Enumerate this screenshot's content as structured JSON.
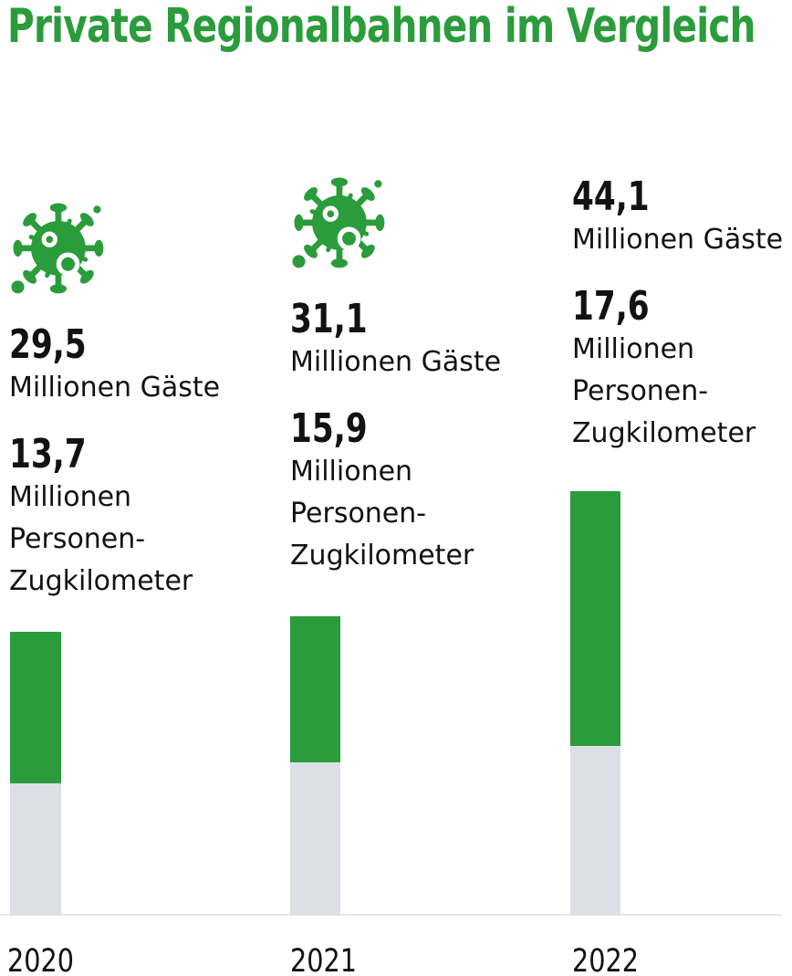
{
  "title": "Private Regionalbahnen im Vergleich",
  "colors": {
    "green": "#2B9C3B",
    "gray_bar": "#DCDFE6",
    "baseline": "#E5E7EB",
    "text": "#121212",
    "background": "#FFFFFF"
  },
  "columns": [
    {
      "year": "2020",
      "has_covid_icon": true,
      "guests_value": "29,5",
      "guests_label": "Millionen Gäste",
      "zugkm_value": "13,7",
      "zugkm_label_lines": [
        "Millionen",
        "Personen-",
        "Zugkilometer"
      ]
    },
    {
      "year": "2021",
      "has_covid_icon": true,
      "guests_value": "31,1",
      "guests_label": "Millionen Gäste",
      "zugkm_value": "15,9",
      "zugkm_label_lines": [
        "Millionen",
        "Personen-",
        "Zugkilometer"
      ]
    },
    {
      "year": "2022",
      "has_covid_icon": false,
      "guests_value": "44,1",
      "guests_label": "Millionen Gäste",
      "zugkm_value": "17,6",
      "zugkm_label_lines": [
        "Millionen",
        "Personen-",
        "Zugkilometer"
      ]
    }
  ],
  "chart_data": {
    "type": "bar",
    "title": "Private Regionalbahnen im Vergleich",
    "categories": [
      "2020",
      "2021",
      "2022"
    ],
    "series": [
      {
        "name": "Millionen Gäste",
        "values": [
          29.5,
          31.1,
          44.1
        ],
        "color": "#2B9C3B",
        "represents": "total bar height (green upper segment = guests minus train-km)"
      },
      {
        "name": "Millionen Personen-Zugkilometer",
        "values": [
          13.7,
          15.9,
          17.6
        ],
        "color": "#DCDFE6",
        "represents": "lower gray segment height"
      }
    ],
    "xlabel": "",
    "ylabel": "",
    "grid": false,
    "legend_position": "none",
    "annotations": [
      "coronavirus icon displayed above 2020 and 2021 figures"
    ]
  }
}
